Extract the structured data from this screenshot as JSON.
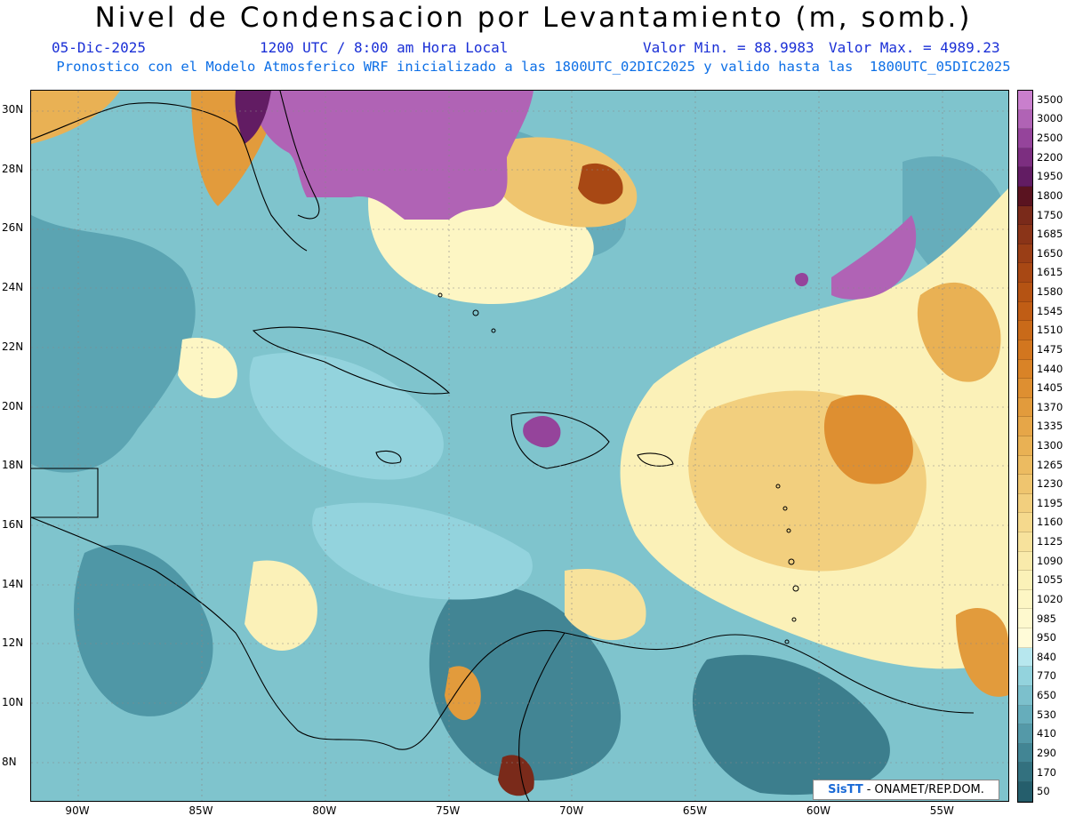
{
  "title": "Nivel de Condensacion por Levantamiento (m, somb.)",
  "date": "05-Dic-2025",
  "time": "1200 UTC / 8:00 am Hora Local",
  "value_min": "Valor Min. = 88.9983",
  "value_max": "Valor Max. = 4989.23",
  "forecast_note": "Pronostico con el Modelo Atmosferico WRF inicializado a las 1800UTC_02DIC2025 y valido hasta las  1800UTC_05DIC2025",
  "lat_labels": [
    "30N",
    "28N",
    "26N",
    "24N",
    "22N",
    "20N",
    "18N",
    "16N",
    "14N",
    "12N",
    "10N",
    "8N"
  ],
  "lon_labels": [
    "90W",
    "85W",
    "80W",
    "75W",
    "70W",
    "65W",
    "60W",
    "55W"
  ],
  "colorbar": {
    "levels": [
      "3500",
      "3000",
      "2500",
      "2200",
      "1950",
      "1800",
      "1750",
      "1685",
      "1650",
      "1615",
      "1580",
      "1545",
      "1510",
      "1475",
      "1440",
      "1405",
      "1370",
      "1335",
      "1300",
      "1265",
      "1230",
      "1195",
      "1160",
      "1125",
      "1090",
      "1055",
      "1020",
      "985",
      "950",
      "840",
      "770",
      "650",
      "530",
      "410",
      "290",
      "170",
      "50"
    ],
    "colors": [
      "#c97fcd",
      "#b063b5",
      "#95449b",
      "#7c2e80",
      "#621c63",
      "#5a1320",
      "#7a2a1a",
      "#8a3418",
      "#9a3e16",
      "#a84814",
      "#b55313",
      "#c05d15",
      "#c96a19",
      "#d2761f",
      "#d98327",
      "#de8f31",
      "#e29b3c",
      "#e6a648",
      "#e9b154",
      "#ecbb61",
      "#efc56f",
      "#f2cf7e",
      "#f5d98d",
      "#f7e29c",
      "#f9eaab",
      "#fbf1b8",
      "#fdf6c4",
      "#fef9ce",
      "#fffbd8",
      "#b7e7ee",
      "#93d3dd",
      "#7cc0cc",
      "#66adbb",
      "#5499a8",
      "#428594",
      "#33717f",
      "#255e6c"
    ]
  },
  "credit": {
    "logo": "SisTT",
    "text": "- ONAMET/REP.DOM."
  }
}
